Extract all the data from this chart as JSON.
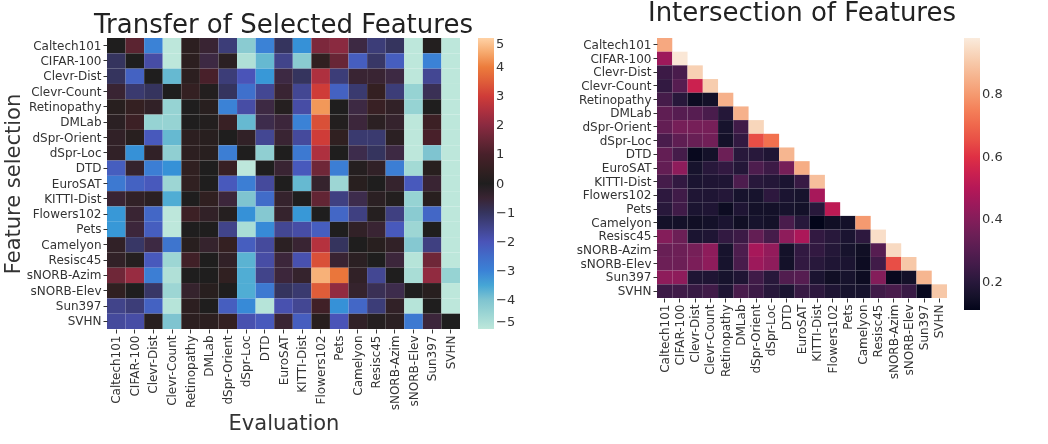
{
  "chart_data": [
    {
      "type": "heatmap",
      "title": "Transfer of Selected Features",
      "xlabel": "Evaluation",
      "ylabel": "Feature selection",
      "categories": [
        "Caltech101",
        "CIFAR-100",
        "Clevr-Dist",
        "Clevr-Count",
        "Retinopathy",
        "DMLab",
        "dSpr-Orient",
        "dSpr-Loc",
        "DTD",
        "EuroSAT",
        "KITTI-Dist",
        "Flowers102",
        "Pets",
        "Camelyon",
        "Resisc45",
        "sNORB-Azim",
        "sNORB-Elev",
        "Sun397",
        "SVHN"
      ],
      "y_categories": [
        "Caltech101",
        "CIFAR-100",
        "Clevr-Dist",
        "Clevr-Count",
        "Retinopathy",
        "DMLab",
        "dSpr-Orient",
        "dSpr-Loc",
        "DTD",
        "EuroSAT",
        "KITTI-Dist",
        "Flowers102",
        "Pets",
        "Camelyon",
        "Resisc45",
        "sNORB-Azim",
        "sNORB-Elev",
        "Sun397",
        "SVHN"
      ],
      "cells": [
        [
          0,
          1.3,
          -3,
          -5,
          0.3,
          -0.5,
          -1.3,
          -4.2,
          -3,
          -1,
          -3.2,
          1.8,
          2,
          -0.7,
          -1.3,
          -1,
          -5,
          0.1,
          -5
        ],
        [
          -1,
          0,
          -1.8,
          -5,
          0.3,
          -0.7,
          -0.2,
          -4.8,
          -3.8,
          -1.5,
          -4.2,
          0.4,
          1.5,
          -2.2,
          -1.1,
          -2.2,
          -5,
          -3,
          -5
        ],
        [
          -1,
          -2.3,
          0,
          -3.8,
          0.3,
          1,
          -1.3,
          -2,
          -3.3,
          -0.7,
          -1,
          2.5,
          -1.3,
          -0.5,
          -0.5,
          -0.7,
          -5,
          -1.6,
          -5
        ],
        [
          -0.5,
          -1.2,
          -1,
          0,
          0.5,
          0.1,
          -1,
          -2.6,
          -1.6,
          -0.5,
          -1.6,
          3,
          -2.3,
          -1.2,
          0.5,
          -1.3,
          -4.4,
          -0.9,
          -5
        ],
        [
          0.2,
          0.5,
          -0.3,
          -4.4,
          0,
          0.2,
          -3,
          -1.8,
          -0.7,
          -0.1,
          -1.8,
          4.3,
          0,
          -0.7,
          0.6,
          -0.3,
          -4.4,
          0,
          -5
        ],
        [
          -0.2,
          0.7,
          -4.4,
          -4.4,
          0,
          0.1,
          0.6,
          -3.8,
          -0.8,
          -0.6,
          -3,
          3.3,
          0.1,
          -0.6,
          -0.2,
          -0.4,
          -5,
          0.7,
          -5
        ],
        [
          -0.3,
          0.2,
          -2.1,
          -3.8,
          0.3,
          0.2,
          0,
          -0.3,
          -1.6,
          -0.5,
          -1.7,
          3,
          0.4,
          -1.2,
          -1.2,
          -0.2,
          -5,
          1,
          -5
        ],
        [
          -0.3,
          -3.2,
          -0.3,
          -4.3,
          0.3,
          0.2,
          -2.9,
          0,
          -4.3,
          0,
          -2.8,
          2.5,
          0,
          -0.8,
          -1,
          -0.7,
          -5,
          -4,
          -5
        ],
        [
          -2.2,
          -0.4,
          -2.9,
          -3.2,
          0.4,
          0,
          0.6,
          -5,
          0,
          -0.5,
          -2.1,
          1.6,
          -2.9,
          -0.1,
          -0.3,
          -2.9,
          -4.6,
          0.2,
          -5
        ],
        [
          -2.8,
          -2.3,
          -2.1,
          -4.5,
          0.4,
          0,
          -2.1,
          -2.9,
          -1.7,
          0,
          -3.8,
          -0.4,
          -4.5,
          0.2,
          0,
          -0.4,
          -2.1,
          -0.5,
          -5
        ],
        [
          -0.5,
          -0.3,
          -0.2,
          -3.6,
          0,
          0.4,
          -0.6,
          -4,
          -2.5,
          -0.4,
          0,
          1.4,
          -1.4,
          -0.8,
          -0.2,
          0.1,
          -4.4,
          0.2,
          -5
        ],
        [
          -3.3,
          -0.5,
          -2.4,
          -5,
          0.7,
          -0.3,
          -0.1,
          -3.2,
          -4.1,
          -0.4,
          -3.3,
          0,
          -2.4,
          -1.4,
          -0.1,
          -1.4,
          -4.2,
          -2.4,
          -5
        ],
        [
          -3.3,
          -0.6,
          -2.2,
          -5,
          0,
          0,
          -1.5,
          -4.7,
          -3.1,
          -1.6,
          -1.8,
          -2.2,
          0,
          -0.3,
          -0.5,
          -2.1,
          -4.5,
          0,
          -5
        ],
        [
          -0.3,
          -1.1,
          -0.7,
          -2.7,
          0.2,
          -0.4,
          0.5,
          -2.2,
          -1.7,
          -0.2,
          -0.5,
          2.6,
          -1,
          0,
          0.2,
          -0.3,
          -4.1,
          -1.4,
          -5
        ],
        [
          -0.3,
          -0.1,
          -2.1,
          -4.5,
          0.8,
          0,
          -0.3,
          -3.7,
          -1.8,
          -0.6,
          -1.9,
          3.3,
          -0.5,
          -0.2,
          0,
          -0.6,
          -4.9,
          1.6,
          -5
        ],
        [
          1.6,
          2.2,
          -2.9,
          -4.8,
          0,
          0,
          0.4,
          -3.6,
          -1.5,
          -0.6,
          -0.4,
          4.6,
          3.9,
          -0.3,
          -1.6,
          0,
          -4.7,
          2.1,
          -4.4
        ],
        [
          0.4,
          0,
          -1.1,
          -4.5,
          -0.4,
          0.2,
          0,
          -3.6,
          -2.8,
          -1,
          -1.2,
          3.5,
          2.1,
          -0.4,
          -0.9,
          -0.8,
          0,
          0.2,
          -5
        ],
        [
          -1.5,
          -1.3,
          -2.3,
          -4.9,
          0.3,
          0,
          -2.2,
          -3.1,
          -4.9,
          -1.9,
          -1.6,
          0.8,
          -3.2,
          -2.4,
          -1.3,
          -0.3,
          -4.9,
          0,
          -5
        ],
        [
          -1.7,
          -1.8,
          0.2,
          -4,
          0.3,
          0.3,
          0.5,
          -1.9,
          -2.1,
          -0.5,
          -2.2,
          0.2,
          -2,
          -0.3,
          -0.1,
          -0.2,
          -2.8,
          -0.6,
          0
        ]
      ],
      "clim": [
        -5,
        5
      ],
      "cticks": [
        -5,
        -4,
        -3,
        -2,
        -1,
        0,
        1,
        2,
        3,
        4,
        5
      ]
    },
    {
      "type": "heatmap",
      "title": "Intersection of Features",
      "categories": [
        "Caltech101",
        "CIFAR-100",
        "Clevr-Dist",
        "Clevr-Count",
        "Retinopathy",
        "DMLab",
        "dSpr-Orient",
        "dSpr-Loc",
        "DTD",
        "EuroSAT",
        "KITTI-Dist",
        "Flowers102",
        "Pets",
        "Camelyon",
        "Resisc45",
        "sNORB-Azim",
        "sNORB-Elev",
        "Sun397",
        "SVHN"
      ],
      "y_categories": [
        "Caltech101",
        "CIFAR-100",
        "Clevr-Dist",
        "Clevr-Count",
        "Retinopathy",
        "DMLab",
        "dSpr-Orient",
        "dSpr-Loc",
        "DTD",
        "EuroSAT",
        "KITTI-Dist",
        "Flowers102",
        "Pets",
        "Camelyon",
        "Resisc45",
        "sNORB-Azim",
        "sNORB-Elev",
        "Sun397",
        "SVHN"
      ],
      "cells": [
        [
          0.83,
          null,
          null,
          null,
          null,
          null,
          null,
          null,
          null,
          null,
          null,
          null,
          null,
          null,
          null,
          null,
          null,
          null,
          null
        ],
        [
          0.45,
          0.97,
          null,
          null,
          null,
          null,
          null,
          null,
          null,
          null,
          null,
          null,
          null,
          null,
          null,
          null,
          null,
          null,
          null
        ],
        [
          0.24,
          0.27,
          0.92,
          null,
          null,
          null,
          null,
          null,
          null,
          null,
          null,
          null,
          null,
          null,
          null,
          null,
          null,
          null,
          null
        ],
        [
          0.22,
          0.3,
          0.55,
          0.91,
          null,
          null,
          null,
          null,
          null,
          null,
          null,
          null,
          null,
          null,
          null,
          null,
          null,
          null,
          null
        ],
        [
          0.26,
          0.2,
          0.13,
          0.15,
          0.85,
          null,
          null,
          null,
          null,
          null,
          null,
          null,
          null,
          null,
          null,
          null,
          null,
          null,
          null
        ],
        [
          0.32,
          0.3,
          0.3,
          0.27,
          0.19,
          0.85,
          null,
          null,
          null,
          null,
          null,
          null,
          null,
          null,
          null,
          null,
          null,
          null,
          null
        ],
        [
          0.33,
          0.37,
          0.37,
          0.37,
          0.16,
          0.25,
          0.93,
          null,
          null,
          null,
          null,
          null,
          null,
          null,
          null,
          null,
          null,
          null,
          null
        ],
        [
          0.27,
          0.32,
          0.34,
          0.36,
          0.15,
          0.22,
          0.65,
          0.72,
          null,
          null,
          null,
          null,
          null,
          null,
          null,
          null,
          null,
          null,
          null
        ],
        [
          0.33,
          0.26,
          0.12,
          0.15,
          0.35,
          0.2,
          0.2,
          0.18,
          0.86,
          null,
          null,
          null,
          null,
          null,
          null,
          null,
          null,
          null,
          null
        ],
        [
          0.33,
          0.42,
          0.16,
          0.2,
          0.22,
          0.19,
          0.28,
          0.24,
          0.37,
          0.84,
          null,
          null,
          null,
          null,
          null,
          null,
          null,
          null,
          null
        ],
        [
          0.26,
          0.22,
          0.17,
          0.18,
          0.18,
          0.28,
          0.2,
          0.19,
          0.17,
          0.23,
          0.88,
          null,
          null,
          null,
          null,
          null,
          null,
          null,
          null
        ],
        [
          0.21,
          0.25,
          0.18,
          0.18,
          0.19,
          0.16,
          0.16,
          0.21,
          0.17,
          0.16,
          0.47,
          null,
          null,
          null,
          null,
          null,
          null,
          null,
          null
        ],
        [
          0.2,
          0.25,
          0.17,
          0.18,
          0.13,
          0.18,
          0.15,
          0.15,
          0.16,
          0.15,
          0.2,
          0.52,
          null,
          null,
          null,
          null,
          null,
          null,
          null
        ],
        [
          0.15,
          0.15,
          0.14,
          0.15,
          0.17,
          0.14,
          0.16,
          0.15,
          0.27,
          0.2,
          0.11,
          0.14,
          0.15,
          0.8,
          null,
          null,
          null,
          null,
          null
        ],
        [
          0.4,
          0.35,
          0.17,
          0.18,
          0.22,
          0.24,
          0.33,
          0.26,
          0.42,
          0.48,
          0.22,
          0.2,
          0.17,
          0.21,
          0.95,
          null,
          null,
          null,
          null
        ],
        [
          0.34,
          0.35,
          0.37,
          0.42,
          0.16,
          0.28,
          0.47,
          0.43,
          0.15,
          0.22,
          0.22,
          0.19,
          0.16,
          0.14,
          0.3,
          0.94,
          null,
          null,
          null
        ],
        [
          0.35,
          0.35,
          0.38,
          0.42,
          0.16,
          0.27,
          0.45,
          0.42,
          0.15,
          0.22,
          0.2,
          0.18,
          0.17,
          0.13,
          0.25,
          0.65,
          0.9,
          null,
          null
        ],
        [
          0.42,
          0.42,
          0.18,
          0.18,
          0.16,
          0.18,
          0.25,
          0.2,
          0.29,
          0.3,
          0.17,
          0.14,
          0.16,
          0.13,
          0.4,
          0.12,
          0.15,
          0.86,
          null
        ],
        [
          0.24,
          0.25,
          0.23,
          0.25,
          0.18,
          0.27,
          0.24,
          0.2,
          0.17,
          0.23,
          0.21,
          0.18,
          0.16,
          0.16,
          0.25,
          0.27,
          0.23,
          0.12,
          0.9
        ]
      ],
      "clim": [
        0.11,
        0.98
      ],
      "cticks": [
        0.2,
        0.4,
        0.6,
        0.8
      ]
    }
  ]
}
